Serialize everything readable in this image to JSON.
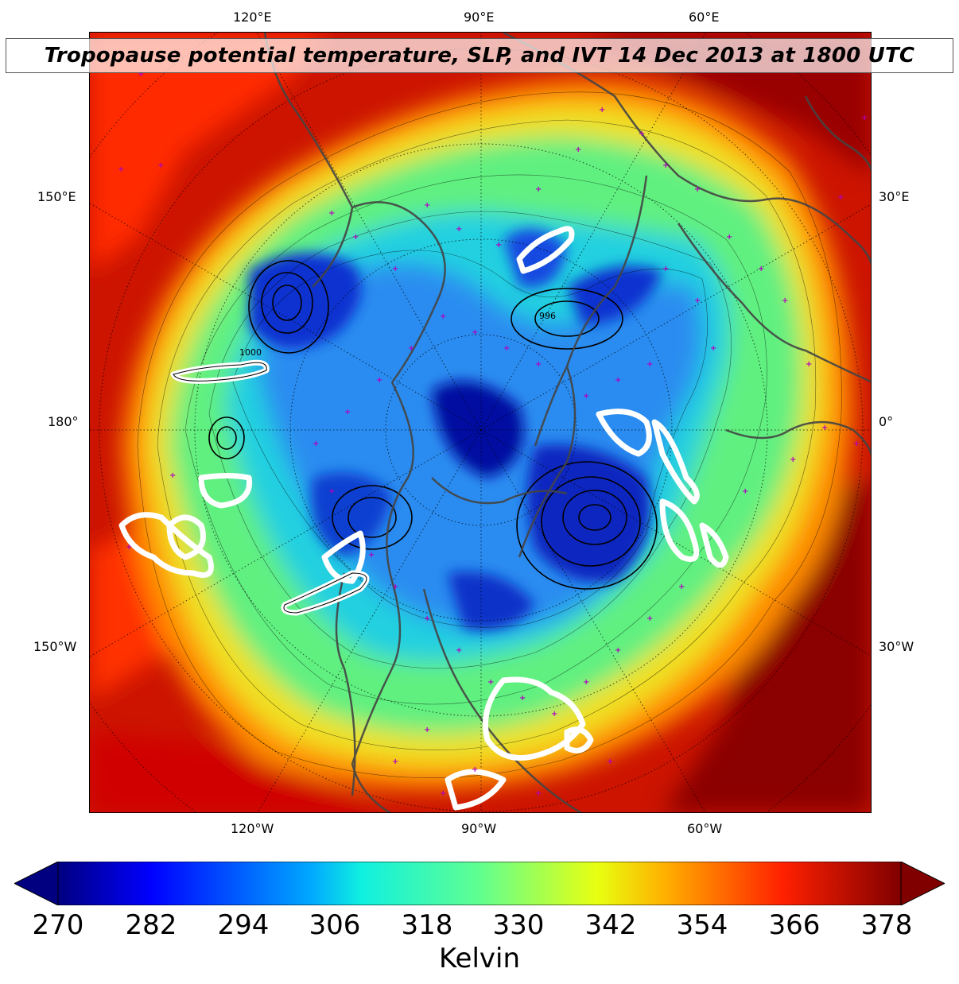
{
  "title": "Tropopause potential temperature, SLP, and IVT 14 Dec 2013 at 1800 UTC",
  "map": {
    "projection": "north-polar-stereographic",
    "field": "tropopause potential temperature",
    "overlays": [
      "SLP contours",
      "IVT contours",
      "station markers",
      "coastlines"
    ],
    "labels": {
      "top": [
        "120°E",
        "90°E",
        "60°E"
      ],
      "bottom": [
        "120°W",
        "90°W",
        "60°W"
      ],
      "left": [
        "150°E",
        "180°",
        "150°W"
      ],
      "right": [
        "30°E",
        "0°",
        "30°W"
      ]
    },
    "sample_slp_labels": [
      "1000",
      "996"
    ],
    "colors": {
      "ivt_contour": "#ffffff",
      "slp_contour": "#000000",
      "station_marker": "#b000c0",
      "coastline": "#444444"
    }
  },
  "colorbar": {
    "min": 270,
    "max": 378,
    "ticks": [
      "270",
      "282",
      "294",
      "306",
      "318",
      "330",
      "342",
      "354",
      "366",
      "378"
    ],
    "label": "Kelvin",
    "colormap": "jet",
    "extend": "both"
  }
}
